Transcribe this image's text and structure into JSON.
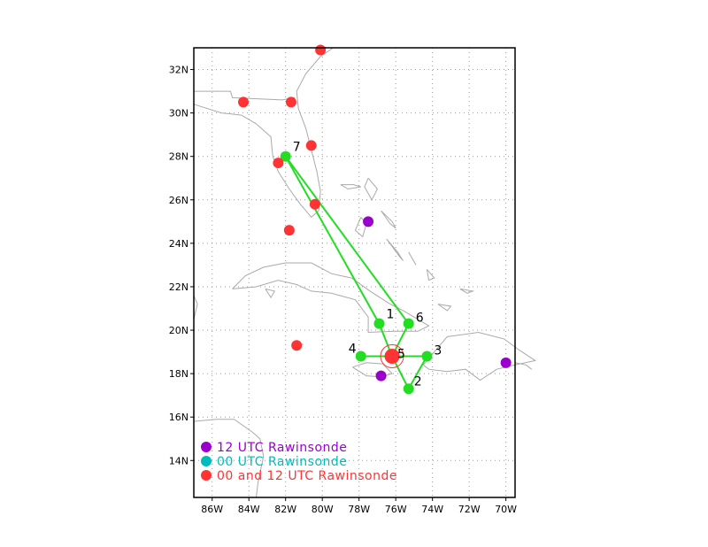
{
  "map": {
    "lon_range": [
      -87,
      -69.5
    ],
    "lat_range": [
      12.3,
      33
    ],
    "x_ticks": [
      {
        "value": -86,
        "label": "86W"
      },
      {
        "value": -84,
        "label": "84W"
      },
      {
        "value": -82,
        "label": "82W"
      },
      {
        "value": -80,
        "label": "80W"
      },
      {
        "value": -78,
        "label": "78W"
      },
      {
        "value": -76,
        "label": "76W"
      },
      {
        "value": -74,
        "label": "74W"
      },
      {
        "value": -72,
        "label": "72W"
      },
      {
        "value": -70,
        "label": "70W"
      }
    ],
    "y_ticks": [
      {
        "value": 14,
        "label": "14N"
      },
      {
        "value": 16,
        "label": "16N"
      },
      {
        "value": 18,
        "label": "18N"
      },
      {
        "value": 20,
        "label": "20N"
      },
      {
        "value": 22,
        "label": "22N"
      },
      {
        "value": 24,
        "label": "24N"
      },
      {
        "value": 26,
        "label": "26N"
      },
      {
        "value": 28,
        "label": "28N"
      },
      {
        "value": 30,
        "label": "30N"
      },
      {
        "value": 32,
        "label": "32N"
      }
    ],
    "grid": true,
    "colors": {
      "flight_track": "#22dd22",
      "rawinsonde_12utc": "#9900cc",
      "rawinsonde_00utc": "#00bbbb",
      "rawinsonde_00_12utc": "#ff3333",
      "coastline": "#aaaaaa",
      "grid": "#999999"
    },
    "storm_center": {
      "lon": -76.2,
      "lat": 18.8
    },
    "flight_waypoints": [
      {
        "id": "1",
        "lon": -76.9,
        "lat": 20.3
      },
      {
        "id": "2",
        "lon": -75.3,
        "lat": 17.3
      },
      {
        "id": "3",
        "lon": -74.3,
        "lat": 18.8
      },
      {
        "id": "4",
        "lon": -77.9,
        "lat": 18.8
      },
      {
        "id": "5",
        "lon": -76.2,
        "lat": 18.8
      },
      {
        "id": "6",
        "lon": -75.3,
        "lat": 20.3
      },
      {
        "id": "7",
        "lon": -82.0,
        "lat": 28.0
      }
    ],
    "flight_path_order": [
      "7",
      "1",
      "5",
      "2",
      "3",
      "4",
      "5",
      "6",
      "7"
    ],
    "rawinsondes_12utc": [
      {
        "lon": -77.5,
        "lat": 25.0
      },
      {
        "lon": -76.8,
        "lat": 17.9
      },
      {
        "lon": -70.0,
        "lat": 18.5
      }
    ],
    "rawinsondes_00_12utc": [
      {
        "lon": -80.1,
        "lat": 32.9
      },
      {
        "lon": -84.3,
        "lat": 30.5
      },
      {
        "lon": -81.7,
        "lat": 30.5
      },
      {
        "lon": -80.6,
        "lat": 28.5
      },
      {
        "lon": -82.4,
        "lat": 27.7
      },
      {
        "lon": -80.4,
        "lat": 25.8
      },
      {
        "lon": -81.8,
        "lat": 24.6
      },
      {
        "lon": -81.4,
        "lat": 19.3
      }
    ],
    "legend": [
      {
        "label": "12 UTC Rawinsonde",
        "color": "#9900cc"
      },
      {
        "label": "00 UTC Rawinsonde",
        "color": "#00bbbb"
      },
      {
        "label": "00 and 12 UTC Rawinsonde",
        "color": "#ff3333"
      }
    ]
  }
}
